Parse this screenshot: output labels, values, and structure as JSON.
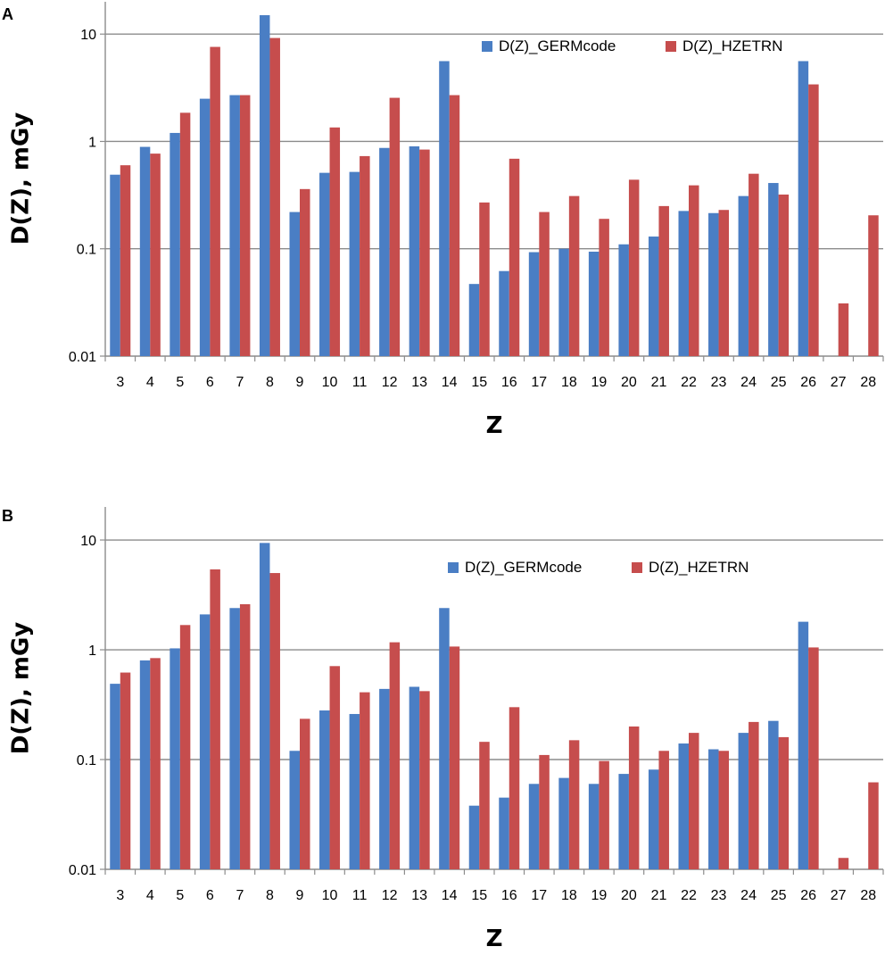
{
  "colors": {
    "germcode": "#4a7ec4",
    "hzetrn": "#c64d4d",
    "grid": "#8c8c8c",
    "axis": "#8c8c8c"
  },
  "chart_data": [
    {
      "type": "bar",
      "panel_label": "A",
      "title": "",
      "xlabel": "Z",
      "ylabel": "D(Z), mGy",
      "yscale": "log",
      "ylim": [
        0.01,
        20
      ],
      "ytick_values": [
        0.01,
        0.1,
        1,
        10
      ],
      "ytick_labels": [
        "0.01",
        "0.1",
        "1",
        "10"
      ],
      "grid": true,
      "legend_position": "top-right",
      "categories": [
        "3",
        "4",
        "5",
        "6",
        "7",
        "8",
        "9",
        "10",
        "11",
        "12",
        "13",
        "14",
        "15",
        "16",
        "17",
        "18",
        "19",
        "20",
        "21",
        "22",
        "23",
        "24",
        "25",
        "26",
        "27",
        "28"
      ],
      "series": [
        {
          "name": "D(Z)_GERMcode",
          "color_key": "germcode",
          "values": [
            0.49,
            0.89,
            1.2,
            2.5,
            2.7,
            15,
            0.22,
            0.51,
            0.52,
            0.87,
            0.9,
            5.6,
            0.047,
            0.062,
            0.093,
            0.1,
            0.094,
            0.11,
            0.13,
            0.225,
            0.215,
            0.31,
            0.41,
            5.6,
            null,
            null
          ]
        },
        {
          "name": "D(Z)_HZETRN",
          "color_key": "hzetrn",
          "values": [
            0.6,
            0.77,
            1.85,
            7.6,
            2.7,
            9.2,
            0.36,
            1.35,
            0.73,
            2.55,
            0.84,
            2.7,
            0.27,
            0.69,
            0.22,
            0.31,
            0.19,
            0.44,
            0.25,
            0.39,
            0.23,
            0.5,
            0.32,
            3.4,
            0.031,
            0.205
          ]
        }
      ]
    },
    {
      "type": "bar",
      "panel_label": "B",
      "title": "",
      "xlabel": "Z",
      "ylabel": "D(Z), mGy",
      "yscale": "log",
      "ylim": [
        0.01,
        20
      ],
      "ytick_values": [
        0.01,
        0.1,
        1,
        10
      ],
      "ytick_labels": [
        "0.01",
        "0.1",
        "1",
        "10"
      ],
      "grid": true,
      "legend_position": "top-right",
      "categories": [
        "3",
        "4",
        "5",
        "6",
        "7",
        "8",
        "9",
        "10",
        "11",
        "12",
        "13",
        "14",
        "15",
        "16",
        "17",
        "18",
        "19",
        "20",
        "21",
        "22",
        "23",
        "24",
        "25",
        "26",
        "27",
        "28"
      ],
      "series": [
        {
          "name": "D(Z)_GERMcode",
          "color_key": "germcode",
          "values": [
            0.49,
            0.8,
            1.03,
            2.1,
            2.4,
            9.4,
            0.12,
            0.28,
            0.26,
            0.44,
            0.46,
            2.4,
            0.038,
            0.045,
            0.06,
            0.068,
            0.06,
            0.074,
            0.081,
            0.14,
            0.124,
            0.175,
            0.225,
            1.8,
            null,
            null
          ]
        },
        {
          "name": "D(Z)_HZETRN",
          "color_key": "hzetrn",
          "values": [
            0.62,
            0.84,
            1.68,
            5.4,
            2.6,
            5.0,
            0.235,
            0.71,
            0.41,
            1.17,
            0.42,
            1.07,
            0.145,
            0.3,
            0.11,
            0.15,
            0.097,
            0.2,
            0.12,
            0.175,
            0.12,
            0.22,
            0.16,
            1.05,
            0.0127,
            0.062
          ]
        }
      ]
    }
  ]
}
